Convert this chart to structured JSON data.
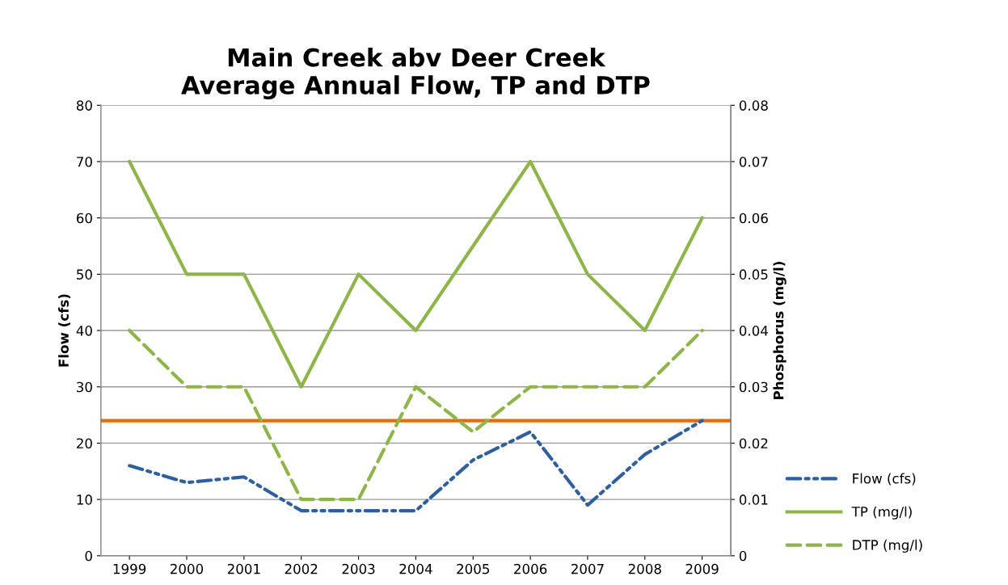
{
  "chart_data": {
    "type": "line",
    "title": "Main Creek abv Deer Creek\nAverage Annual Flow, TP and DTP",
    "ylabel": "Flow (cfs)",
    "y2label": "Phosphorus (mg/l)",
    "categories": [
      "1999",
      "2000",
      "2001",
      "2002",
      "2003",
      "2004",
      "2005",
      "2006",
      "2007",
      "2008",
      "2009"
    ],
    "series": [
      {
        "name": "Flow (cfs)",
        "color": "#2e5f9e",
        "line_style": "dashdotdot",
        "values": [
          16,
          13,
          14,
          8,
          8,
          8,
          17,
          22,
          9,
          18,
          24
        ]
      },
      {
        "name": "TP (mg/l)",
        "color": "#8db548",
        "line_style": "solid",
        "axis": "y2",
        "values": [
          0.07,
          0.05,
          0.05,
          0.03,
          0.05,
          0.04,
          0.055,
          0.07,
          0.05,
          0.04,
          0.06
        ]
      },
      {
        "name": "DTP (mg/l)",
        "color": "#8db548",
        "line_style": "dashed",
        "axis": "y2",
        "values": [
          0.04,
          0.03,
          0.03,
          0.01,
          0.01,
          0.03,
          0.022,
          0.03,
          0.03,
          0.03,
          0.04
        ]
      }
    ],
    "ref_lines": [
      {
        "axis": "y",
        "value": 24,
        "label": null,
        "color": "#e46c0a",
        "line_style": "solid"
      }
    ],
    "ylim": [
      0,
      80
    ],
    "yticks": [
      0,
      10,
      20,
      30,
      40,
      50,
      60,
      70,
      80
    ],
    "y2lim": [
      0,
      0.08
    ],
    "y2ticks": [
      0,
      0.01,
      0.02,
      0.03,
      0.04,
      0.05,
      0.06,
      0.07,
      0.08
    ],
    "grid": "y",
    "legend": "bottom right"
  }
}
